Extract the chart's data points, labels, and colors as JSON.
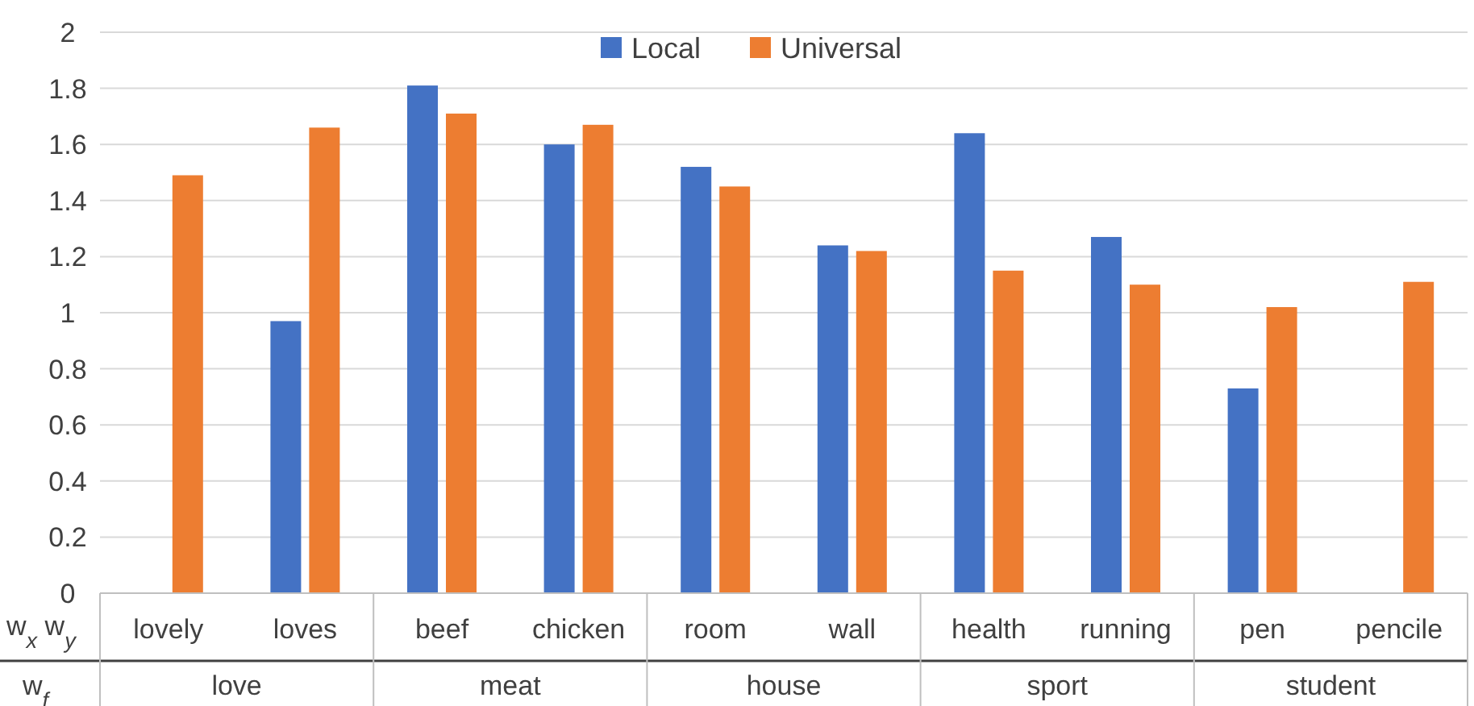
{
  "chart_data": {
    "type": "bar",
    "categories": [
      "lovely",
      "loves",
      "beef",
      "chicken",
      "room",
      "wall",
      "health",
      "running",
      "pen",
      "pencile"
    ],
    "series": [
      {
        "name": "Local",
        "color": "#4472c4",
        "values": [
          null,
          0.97,
          1.81,
          1.6,
          1.52,
          1.24,
          1.64,
          1.27,
          0.73,
          null
        ]
      },
      {
        "name": "Universal",
        "color": "#ed7d31",
        "values": [
          1.49,
          1.66,
          1.71,
          1.67,
          1.45,
          1.22,
          1.15,
          1.1,
          1.02,
          1.11
        ]
      }
    ],
    "ylim": [
      0,
      2
    ],
    "yticks": [
      0,
      {
        "value": 0.2,
        "label": "0.2"
      },
      {
        "value": 0.4,
        "label": "0.4"
      },
      {
        "value": 0.6,
        "label": "0.6"
      },
      {
        "value": 0.8,
        "label": "0.8"
      },
      1,
      {
        "value": 1.2,
        "label": "1.2"
      },
      {
        "value": 1.4,
        "label": "1.4"
      },
      {
        "value": 1.6,
        "label": "1.6"
      },
      {
        "value": 1.8,
        "label": "1.8"
      },
      2
    ],
    "grid": "y",
    "legend": "top",
    "annotations": [
      "w$_{x}$ w$_{y}$",
      "w$_{f}$",
      "love",
      "meat",
      "house",
      "sport",
      "student"
    ]
  }
}
